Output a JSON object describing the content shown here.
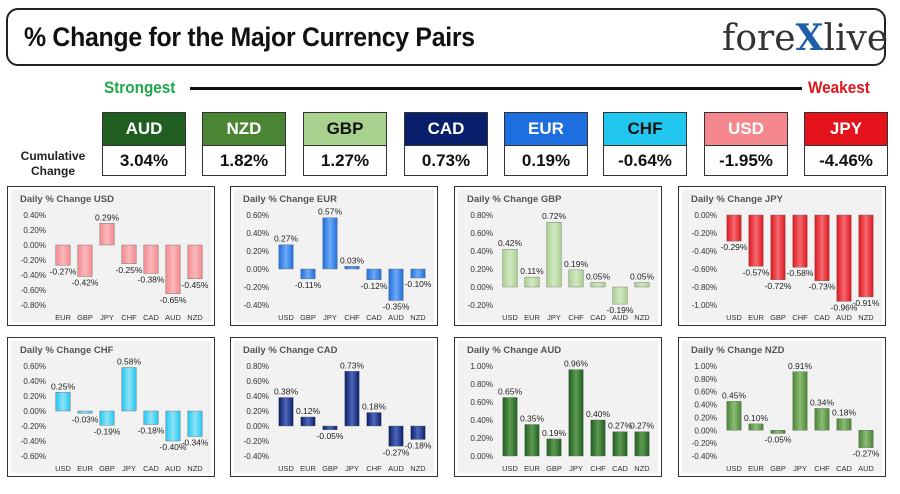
{
  "header": {
    "title": "% Change for the Major Currency Pairs",
    "brand_left": "fore",
    "brand_x": "X",
    "brand_right": "live"
  },
  "strength": {
    "strongest": "Strongest",
    "weakest": "Weakest",
    "cumulative_label": "Cumulative Change"
  },
  "currencies": [
    {
      "code": "AUD",
      "value": "3.04%",
      "bg": "#1f5e20",
      "fg": "#ffffff"
    },
    {
      "code": "NZD",
      "value": "1.82%",
      "bg": "#4a8534",
      "fg": "#ffffff"
    },
    {
      "code": "GBP",
      "value": "1.27%",
      "bg": "#a9d18e",
      "fg": "#111111"
    },
    {
      "code": "CAD",
      "value": "0.73%",
      "bg": "#0a1f6b",
      "fg": "#ffffff"
    },
    {
      "code": "EUR",
      "value": "0.19%",
      "bg": "#1d6fe0",
      "fg": "#ffffff"
    },
    {
      "code": "CHF",
      "value": "-0.64%",
      "bg": "#22c7f0",
      "fg": "#111111"
    },
    {
      "code": "USD",
      "value": "-1.95%",
      "bg": "#f4888e",
      "fg": "#ffffff"
    },
    {
      "code": "JPY",
      "value": "-4.46%",
      "bg": "#e3121b",
      "fg": "#ffffff"
    }
  ],
  "chart_data": [
    {
      "type": "bar",
      "title": "Daily % Change USD",
      "categories": [
        "EUR",
        "GBP",
        "JPY",
        "CHF",
        "CAD",
        "AUD",
        "NZD"
      ],
      "values": [
        -0.27,
        -0.42,
        0.29,
        -0.25,
        -0.38,
        -0.65,
        -0.45
      ],
      "labels": [
        "-0.27%",
        "-0.42%",
        "0.29%",
        "-0.25%",
        "-0.38%",
        "-0.65%",
        "-0.45%"
      ],
      "ylim": [
        -0.8,
        0.4
      ],
      "ticks": [
        0.4,
        0.2,
        0.0,
        -0.2,
        -0.4,
        -0.6,
        -0.8
      ],
      "tick_labels": [
        "0.40%",
        "0.20%",
        "0.00%",
        "-0.20%",
        "-0.40%",
        "-0.60%",
        "-0.80%"
      ],
      "color": "#f4888e",
      "color_light": "#f9b9bc"
    },
    {
      "type": "bar",
      "title": "Daily % Change EUR",
      "categories": [
        "USD",
        "GBP",
        "JPY",
        "CHF",
        "CAD",
        "AUD",
        "NZD"
      ],
      "values": [
        0.27,
        -0.11,
        0.57,
        0.03,
        -0.12,
        -0.35,
        -0.1
      ],
      "labels": [
        "0.27%",
        "-0.11%",
        "0.57%",
        "0.03%",
        "-0.12%",
        "-0.35%",
        "-0.10%"
      ],
      "ylim": [
        -0.4,
        0.6
      ],
      "ticks": [
        0.6,
        0.4,
        0.2,
        0.0,
        -0.2,
        -0.4
      ],
      "tick_labels": [
        "0.60%",
        "0.40%",
        "0.20%",
        "0.00%",
        "-0.20%",
        "-0.40%"
      ],
      "color": "#1d6fe0",
      "color_light": "#6ea9f5"
    },
    {
      "type": "bar",
      "title": "Daily % Change GBP",
      "categories": [
        "USD",
        "EUR",
        "JPY",
        "CHF",
        "CAD",
        "AUD",
        "NZD"
      ],
      "values": [
        0.42,
        0.11,
        0.72,
        0.19,
        0.05,
        -0.19,
        0.05
      ],
      "labels": [
        "0.42%",
        "0.11%",
        "0.72%",
        "0.19%",
        "0.05%",
        "-0.19%",
        "0.05%"
      ],
      "ylim": [
        -0.2,
        0.8
      ],
      "ticks": [
        0.8,
        0.6,
        0.4,
        0.2,
        0.0,
        -0.2
      ],
      "tick_labels": [
        "0.80%",
        "0.60%",
        "0.40%",
        "0.20%",
        "0.00%",
        "-0.20%"
      ],
      "color": "#a9d18e",
      "color_light": "#d3e8c4"
    },
    {
      "type": "bar",
      "title": "Daily % Change JPY",
      "categories": [
        "USD",
        "EUR",
        "GBP",
        "CHF",
        "CAD",
        "AUD",
        "NZD"
      ],
      "values": [
        -0.29,
        -0.57,
        -0.72,
        -0.58,
        -0.73,
        -0.96,
        -0.91
      ],
      "labels": [
        "-0.29%",
        "-0.57%",
        "-0.72%",
        "-0.58%",
        "-0.73%",
        "-0.96%",
        "-0.91%"
      ],
      "ylim": [
        -1.0,
        0.0
      ],
      "ticks": [
        0.0,
        -0.2,
        -0.4,
        -0.6,
        -0.8,
        -1.0
      ],
      "tick_labels": [
        "0.00%",
        "-0.20%",
        "-0.40%",
        "-0.60%",
        "-0.80%",
        "-1.00%"
      ],
      "color": "#e3121b",
      "color_light": "#f26a70"
    },
    {
      "type": "bar",
      "title": "Daily % Change CHF",
      "categories": [
        "USD",
        "EUR",
        "GBP",
        "JPY",
        "CAD",
        "AUD",
        "NZD"
      ],
      "values": [
        0.25,
        -0.03,
        -0.19,
        0.58,
        -0.18,
        -0.4,
        -0.34
      ],
      "labels": [
        "0.25%",
        "-0.03%",
        "-0.19%",
        "0.58%",
        "-0.18%",
        "-0.40%",
        "-0.34%"
      ],
      "ylim": [
        -0.6,
        0.6
      ],
      "ticks": [
        0.6,
        0.4,
        0.2,
        0.0,
        -0.2,
        -0.4,
        -0.6
      ],
      "tick_labels": [
        "0.60%",
        "0.40%",
        "0.20%",
        "0.00%",
        "-0.20%",
        "-0.40%",
        "-0.60%"
      ],
      "color": "#22c7f0",
      "color_light": "#8fe2f7"
    },
    {
      "type": "bar",
      "title": "Daily % Change CAD",
      "categories": [
        "USD",
        "EUR",
        "GBP",
        "JPY",
        "CHF",
        "AUD",
        "NZD"
      ],
      "values": [
        0.38,
        0.12,
        -0.05,
        0.73,
        0.18,
        -0.27,
        -0.18
      ],
      "labels": [
        "0.38%",
        "0.12%",
        "-0.05%",
        "0.73%",
        "0.18%",
        "-0.27%",
        "-0.18%"
      ],
      "ylim": [
        -0.4,
        0.8
      ],
      "ticks": [
        0.8,
        0.6,
        0.4,
        0.2,
        0.0,
        -0.2,
        -0.4
      ],
      "tick_labels": [
        "0.80%",
        "0.60%",
        "0.40%",
        "0.20%",
        "0.00%",
        "-0.20%",
        "-0.40%"
      ],
      "color": "#0a1f6b",
      "color_light": "#4d66b8"
    },
    {
      "type": "bar",
      "title": "Daily % Change AUD",
      "categories": [
        "USD",
        "EUR",
        "GBP",
        "JPY",
        "CHF",
        "CAD",
        "NZD"
      ],
      "values": [
        0.65,
        0.35,
        0.19,
        0.96,
        0.4,
        0.27,
        0.27
      ],
      "labels": [
        "0.65%",
        "0.35%",
        "0.19%",
        "0.96%",
        "0.40%",
        "0.27%",
        "0.27%"
      ],
      "ylim": [
        0.0,
        1.0
      ],
      "ticks": [
        1.0,
        0.8,
        0.6,
        0.4,
        0.2,
        0.0
      ],
      "tick_labels": [
        "1.00%",
        "0.80%",
        "0.60%",
        "0.40%",
        "0.20%",
        "0.00%"
      ],
      "color": "#1f5e20",
      "color_light": "#5f9a52"
    },
    {
      "type": "bar",
      "title": "Daily % Change NZD",
      "categories": [
        "USD",
        "EUR",
        "GBP",
        "JPY",
        "CHF",
        "CAD",
        "AUD"
      ],
      "values": [
        0.45,
        0.1,
        -0.05,
        0.91,
        0.34,
        0.18,
        -0.27
      ],
      "labels": [
        "0.45%",
        "0.10%",
        "-0.05%",
        "0.91%",
        "0.34%",
        "0.18%",
        "-0.27%"
      ],
      "ylim": [
        -0.4,
        1.0
      ],
      "ticks": [
        1.0,
        0.8,
        0.6,
        0.4,
        0.2,
        0.0,
        -0.2,
        -0.4
      ],
      "tick_labels": [
        "1.00%",
        "0.80%",
        "0.60%",
        "0.40%",
        "0.20%",
        "0.00%",
        "-0.20%",
        "-0.40%"
      ],
      "color": "#4a8534",
      "color_light": "#8cbc76"
    }
  ]
}
